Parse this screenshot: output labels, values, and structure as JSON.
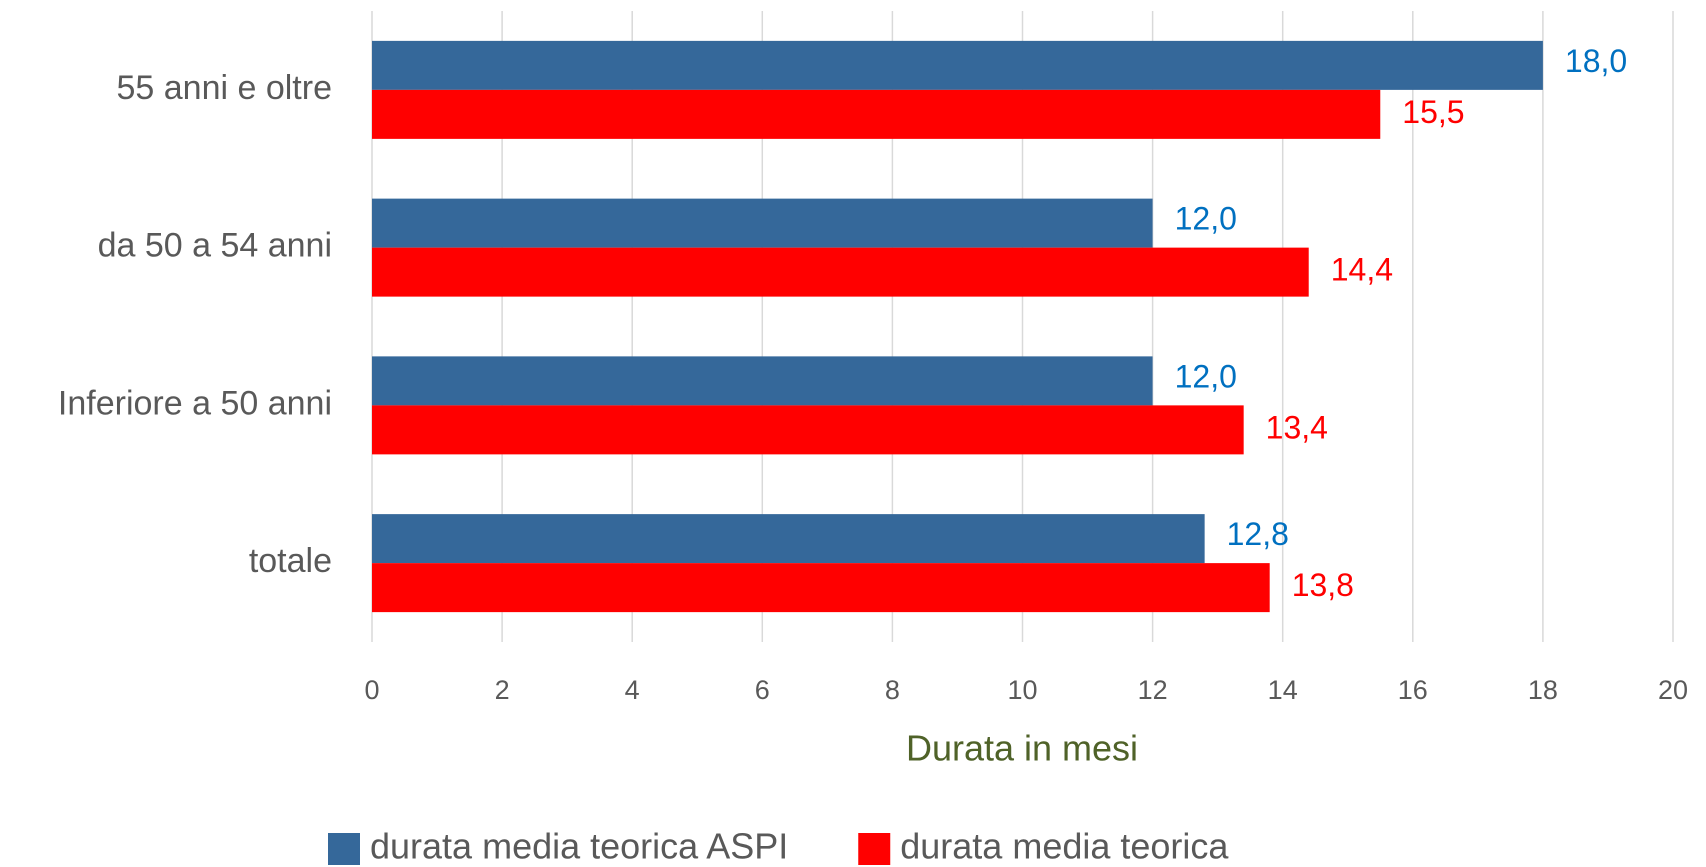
{
  "chart_data": {
    "type": "barh",
    "categories": [
      "55 anni e oltre",
      "da 50 a 54 anni",
      "Inferiore a 50 anni",
      "totale"
    ],
    "series": [
      {
        "name": "durata media teorica ASPI",
        "color": "#35689a",
        "label_color": "#0070c0",
        "values": [
          18.0,
          12.0,
          12.0,
          12.8
        ],
        "value_labels": [
          "18,0",
          "12,0",
          "12,0",
          "12,8"
        ]
      },
      {
        "name": "durata media teorica",
        "color": "#ff0000",
        "label_color": "#ff0000",
        "values": [
          15.5,
          14.4,
          13.4,
          13.8
        ],
        "value_labels": [
          "15,5",
          "14,4",
          "13,4",
          "13,8"
        ]
      }
    ],
    "xlabel": "Durata in mesi",
    "xlim": [
      0,
      20
    ],
    "xticks": [
      0,
      2,
      4,
      6,
      8,
      10,
      12,
      14,
      16,
      18,
      20
    ],
    "grid": true,
    "legend": "bottom"
  }
}
